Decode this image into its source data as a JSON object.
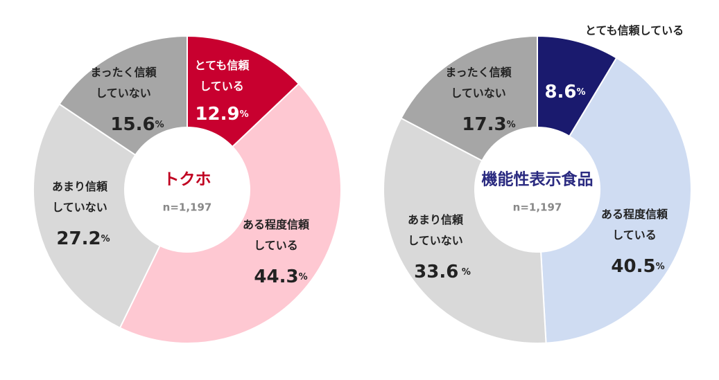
{
  "chart_data": [
    {
      "type": "pie",
      "title": "トクホ",
      "subtitle": "n=1,197",
      "title_color": "#c00020",
      "categories": [
        "とても信頼している",
        "ある程度信頼している",
        "あまり信頼していない",
        "まったく信頼していない"
      ],
      "values": [
        12.9,
        44.3,
        27.2,
        15.6
      ],
      "value_labels": [
        "12.9%",
        "44.3%",
        "27.2%",
        "15.6%"
      ],
      "colors": [
        "#c8002f",
        "#fec8d2",
        "#d9d9d9",
        "#a6a6a6"
      ]
    },
    {
      "type": "pie",
      "title": "機能性表示食品",
      "subtitle": "n=1,197",
      "title_color": "#2a2a80",
      "categories": [
        "とても信頼している",
        "ある程度信頼している",
        "あまり信頼していない",
        "まったく信頼していない"
      ],
      "values": [
        8.6,
        40.5,
        33.6,
        17.3
      ],
      "value_labels": [
        "8.6%",
        "40.5%",
        "33.6 %",
        "17.3%"
      ],
      "colors": [
        "#1a1a6e",
        "#cfdcf2",
        "#d9d9d9",
        "#a6a6a6"
      ]
    }
  ]
}
